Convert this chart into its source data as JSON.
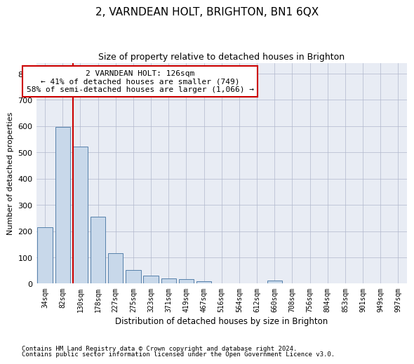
{
  "title": "2, VARNDEAN HOLT, BRIGHTON, BN1 6QX",
  "subtitle": "Size of property relative to detached houses in Brighton",
  "xlabel": "Distribution of detached houses by size in Brighton",
  "ylabel": "Number of detached properties",
  "footnote1": "Contains HM Land Registry data © Crown copyright and database right 2024.",
  "footnote2": "Contains public sector information licensed under the Open Government Licence v3.0.",
  "annotation_line1": "2 VARNDEAN HOLT: 126sqm",
  "annotation_line2": "← 41% of detached houses are smaller (749)",
  "annotation_line3": "58% of semi-detached houses are larger (1,066) →",
  "bar_color": "#c8d8ea",
  "bar_edge_color": "#5580aa",
  "grid_color": "#b0b8cc",
  "bg_color": "#e8ecf4",
  "marker_line_color": "#cc0000",
  "annotation_box_color": "#cc0000",
  "ylim": [
    0,
    840
  ],
  "yticks": [
    0,
    100,
    200,
    300,
    400,
    500,
    600,
    700,
    800
  ],
  "categories": [
    "34sqm",
    "82sqm",
    "130sqm",
    "178sqm",
    "227sqm",
    "275sqm",
    "323sqm",
    "371sqm",
    "419sqm",
    "467sqm",
    "516sqm",
    "564sqm",
    "612sqm",
    "660sqm",
    "708sqm",
    "756sqm",
    "804sqm",
    "853sqm",
    "901sqm",
    "949sqm",
    "997sqm"
  ],
  "values": [
    215,
    597,
    523,
    255,
    117,
    53,
    31,
    20,
    16,
    10,
    0,
    0,
    0,
    11,
    0,
    0,
    0,
    0,
    0,
    0,
    0
  ],
  "marker_bar_index": 2,
  "bar_width": 0.85
}
